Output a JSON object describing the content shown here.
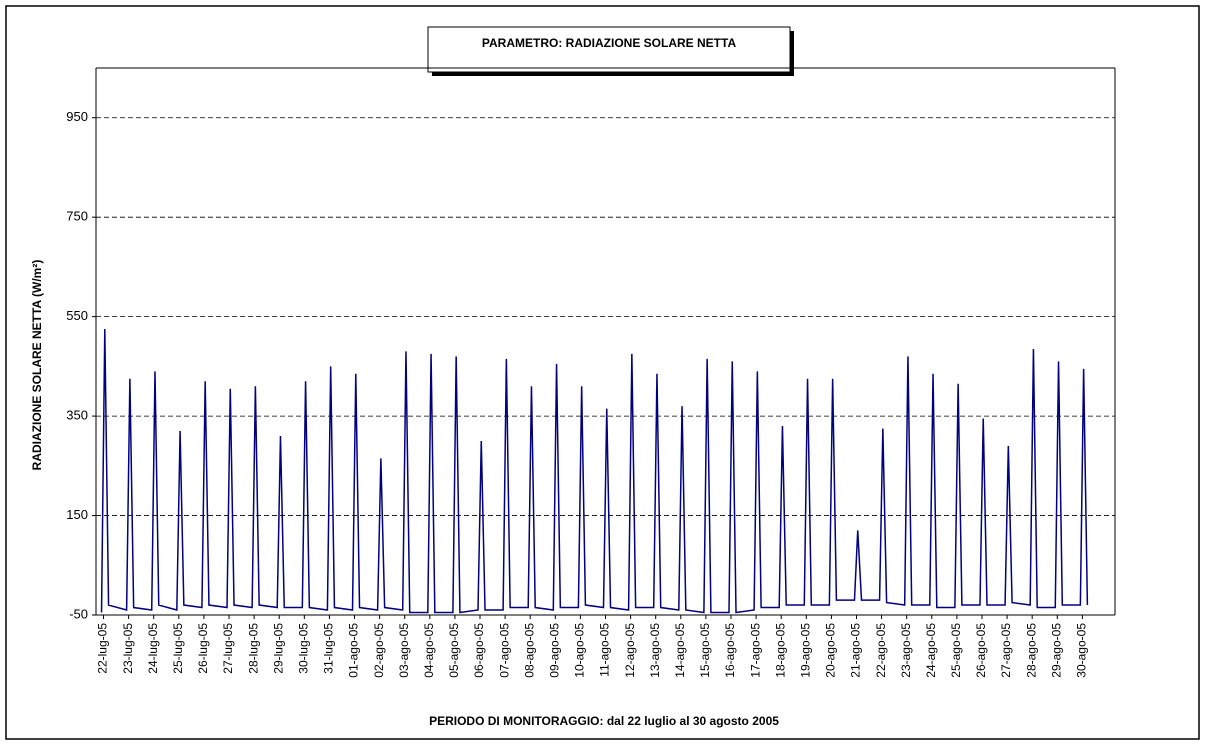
{
  "chart_data": {
    "type": "line",
    "title": "PARAMETRO: RADIAZIONE SOLARE NETTA",
    "x_label": "PERIODO DI MONITORAGGIO: dal 22 luglio al 30 agosto 2005",
    "y_label": "RADIAZIONE SOLARE NETTA (W/m²)",
    "color": "#000080",
    "grid": true,
    "xlim": [
      -0.3,
      40.3
    ],
    "ylim": [
      -50,
      1050
    ],
    "yticks": [
      -50,
      150,
      350,
      550,
      750,
      950
    ],
    "xticks": [
      {
        "value": 0,
        "label": "22-lug-05"
      },
      {
        "value": 1,
        "label": "23-lug-05"
      },
      {
        "value": 2,
        "label": "24-lug-05"
      },
      {
        "value": 3,
        "label": "25-lug-05"
      },
      {
        "value": 4,
        "label": "26-lug-05"
      },
      {
        "value": 5,
        "label": "27-lug-05"
      },
      {
        "value": 6,
        "label": "28-lug-05"
      },
      {
        "value": 7,
        "label": "29-lug-05"
      },
      {
        "value": 8,
        "label": "30-lug-05"
      },
      {
        "value": 9,
        "label": "31-lug-05"
      },
      {
        "value": 10,
        "label": "01-ago-05"
      },
      {
        "value": 11,
        "label": "02-ago-05"
      },
      {
        "value": 12,
        "label": "03-ago-05"
      },
      {
        "value": 13,
        "label": "04-ago-05"
      },
      {
        "value": 14,
        "label": "05-ago-05"
      },
      {
        "value": 15,
        "label": "06-ago-05"
      },
      {
        "value": 16,
        "label": "07-ago-05"
      },
      {
        "value": 17,
        "label": "08-ago-05"
      },
      {
        "value": 18,
        "label": "09-ago-05"
      },
      {
        "value": 19,
        "label": "10-ago-05"
      },
      {
        "value": 20,
        "label": "11-ago-05"
      },
      {
        "value": 21,
        "label": "12-ago-05"
      },
      {
        "value": 22,
        "label": "13-ago-05"
      },
      {
        "value": 23,
        "label": "14-ago-05"
      },
      {
        "value": 24,
        "label": "15-ago-05"
      },
      {
        "value": 25,
        "label": "16-ago-05"
      },
      {
        "value": 26,
        "label": "17-ago-05"
      },
      {
        "value": 27,
        "label": "18-ago-05"
      },
      {
        "value": 28,
        "label": "19-ago-05"
      },
      {
        "value": 29,
        "label": "20-ago-05"
      },
      {
        "value": 30,
        "label": "21-ago-05"
      },
      {
        "value": 31,
        "label": "22-ago-05"
      },
      {
        "value": 32,
        "label": "23-ago-05"
      },
      {
        "value": 33,
        "label": "24-ago-05"
      },
      {
        "value": 34,
        "label": "25-ago-05"
      },
      {
        "value": 35,
        "label": "26-ago-05"
      },
      {
        "value": 36,
        "label": "27-ago-05"
      },
      {
        "value": 37,
        "label": "28-ago-05"
      },
      {
        "value": 38,
        "label": "29-ago-05"
      },
      {
        "value": 39,
        "label": "30-ago-05"
      }
    ],
    "x": [
      -0.08,
      0.05,
      0.2,
      0.92,
      1.05,
      1.2,
      1.92,
      2.05,
      2.2,
      2.92,
      3.05,
      3.2,
      3.92,
      4.05,
      4.2,
      4.92,
      5.05,
      5.2,
      5.92,
      6.05,
      6.2,
      6.92,
      7.05,
      7.2,
      7.92,
      8.05,
      8.2,
      8.92,
      9.05,
      9.2,
      9.92,
      10.05,
      10.2,
      10.92,
      11.05,
      11.2,
      11.92,
      12.05,
      12.2,
      12.92,
      13.05,
      13.2,
      13.92,
      14.05,
      14.2,
      14.92,
      15.05,
      15.2,
      15.92,
      16.05,
      16.2,
      16.92,
      17.05,
      17.2,
      17.92,
      18.05,
      18.2,
      18.92,
      19.05,
      19.2,
      19.92,
      20.05,
      20.2,
      20.92,
      21.05,
      21.2,
      21.92,
      22.05,
      22.2,
      22.92,
      23.05,
      23.2,
      23.92,
      24.05,
      24.2,
      24.92,
      25.05,
      25.2,
      25.92,
      26.05,
      26.2,
      26.92,
      27.05,
      27.2,
      27.92,
      28.05,
      28.2,
      28.92,
      29.05,
      29.2,
      29.92,
      30.05,
      30.2,
      30.92,
      31.05,
      31.2,
      31.92,
      32.05,
      32.2,
      32.92,
      33.05,
      33.2,
      33.92,
      34.05,
      34.2,
      34.92,
      35.05,
      35.2,
      35.92,
      36.05,
      36.2,
      36.92,
      37.05,
      37.2,
      37.92,
      38.05,
      38.2,
      38.92,
      39.05,
      39.2
    ],
    "values": [
      -45,
      525,
      -30,
      -40,
      425,
      -35,
      -40,
      440,
      -30,
      -40,
      320,
      -30,
      -35,
      420,
      -30,
      -35,
      405,
      -30,
      -35,
      410,
      -30,
      -35,
      310,
      -35,
      -35,
      420,
      -35,
      -40,
      450,
      -35,
      -40,
      435,
      -35,
      -40,
      265,
      -35,
      -40,
      480,
      -45,
      -45,
      475,
      -45,
      -45,
      470,
      -45,
      -40,
      300,
      -40,
      -40,
      465,
      -35,
      -35,
      410,
      -35,
      -40,
      455,
      -35,
      -35,
      410,
      -30,
      -35,
      365,
      -35,
      -40,
      475,
      -35,
      -35,
      435,
      -35,
      -40,
      370,
      -40,
      -45,
      465,
      -45,
      -45,
      460,
      -45,
      -40,
      440,
      -35,
      -35,
      330,
      -30,
      -30,
      425,
      -30,
      -30,
      425,
      -20,
      -20,
      120,
      -20,
      -20,
      325,
      -25,
      -30,
      470,
      -30,
      -30,
      435,
      -35,
      -35,
      415,
      -30,
      -30,
      345,
      -30,
      -30,
      290,
      -25,
      -30,
      485,
      -35,
      -35,
      460,
      -30,
      -30,
      445,
      -30
    ]
  }
}
